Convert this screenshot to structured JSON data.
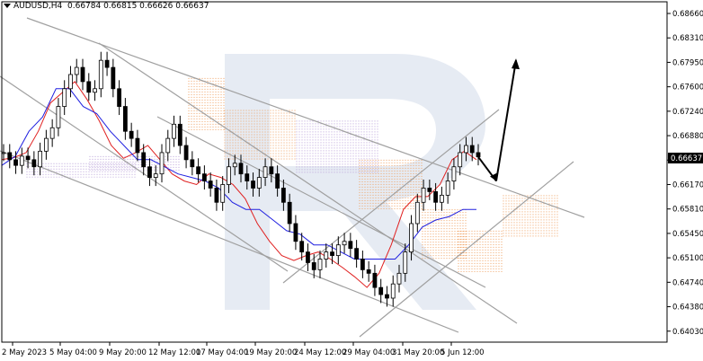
{
  "header": {
    "symbol": "AUDUSD,H4",
    "ohlc": "0.66784 0.66815 0.66626 0.66637"
  },
  "current_price": "0.66637",
  "colors": {
    "bull": "#3a8a3a",
    "bear": "#cc2222",
    "tenkan": "#e02020",
    "kijun": "#2020e0",
    "kumo_orange": "#f0a060",
    "kumo_violet": "#b8a0d8",
    "trendline": "#a0a0a0",
    "arrow": "#000000",
    "price_box": "#000000"
  },
  "chart_data": {
    "type": "candlestick",
    "x_ticks": [
      "2 May 2023",
      "5 May 04:00",
      "9 May 20:00",
      "12 May 12:00",
      "17 May 04:00",
      "19 May 20:00",
      "24 May 12:00",
      "29 May 04:00",
      "31 May 20:00",
      "5 Jun 12:00"
    ],
    "y_ticks": [
      "0.68660",
      "0.68310",
      "0.67950",
      "0.67600",
      "0.67240",
      "0.66880",
      "0.66520",
      "0.66170",
      "0.65810",
      "0.65450",
      "0.65100",
      "0.64740",
      "0.64380",
      "0.64030"
    ],
    "ylim": [
      0.6403,
      0.6866
    ],
    "close_path": [
      0.667,
      0.666,
      0.6652,
      0.6665,
      0.666,
      0.665,
      0.6672,
      0.669,
      0.6705,
      0.6735,
      0.676,
      0.678,
      0.679,
      0.677,
      0.6755,
      0.676,
      0.68,
      0.679,
      0.676,
      0.6735,
      0.67,
      0.669,
      0.667,
      0.665,
      0.6635,
      0.664,
      0.667,
      0.669,
      0.671,
      0.668,
      0.666,
      0.665,
      0.664,
      0.663,
      0.662,
      0.66,
      0.6625,
      0.665,
      0.6655,
      0.664,
      0.663,
      0.662,
      0.6635,
      0.665,
      0.664,
      0.662,
      0.66,
      0.657,
      0.6545,
      0.653,
      0.6515,
      0.6505,
      0.652,
      0.653,
      0.6525,
      0.654,
      0.6545,
      0.6535,
      0.652,
      0.6505,
      0.65,
      0.648,
      0.647,
      0.6465,
      0.6485,
      0.65,
      0.653,
      0.657,
      0.66,
      0.662,
      0.6615,
      0.66,
      0.661,
      0.663,
      0.665,
      0.667,
      0.668,
      0.667,
      0.6664
    ],
    "ichimoku": {
      "tenkan": [
        0.666,
        0.6663,
        0.667,
        0.67,
        0.674,
        0.6755,
        0.677,
        0.6745,
        0.6715,
        0.668,
        0.6662,
        0.667,
        0.668,
        0.666,
        0.664,
        0.663,
        0.6625,
        0.664,
        0.6635,
        0.6625,
        0.6605,
        0.657,
        0.6545,
        0.6525,
        0.6518,
        0.6525,
        0.653,
        0.652,
        0.6508,
        0.6495,
        0.648,
        0.65,
        0.654,
        0.659,
        0.6608,
        0.6608,
        0.6625,
        0.666,
        0.6672,
        0.666
      ],
      "kijun": [
        0.6652,
        0.6665,
        0.67,
        0.672,
        0.676,
        0.676,
        0.6735,
        0.6725,
        0.67,
        0.668,
        0.666,
        0.666,
        0.665,
        0.664,
        0.6635,
        0.663,
        0.662,
        0.66,
        0.659,
        0.659,
        0.6575,
        0.656,
        0.6555,
        0.654,
        0.654,
        0.653,
        0.652,
        0.652,
        0.652,
        0.652,
        0.654,
        0.6565,
        0.6575,
        0.658,
        0.659,
        0.659
      ]
    },
    "forecast": {
      "short_target": 0.663,
      "long_target": 0.68
    }
  }
}
